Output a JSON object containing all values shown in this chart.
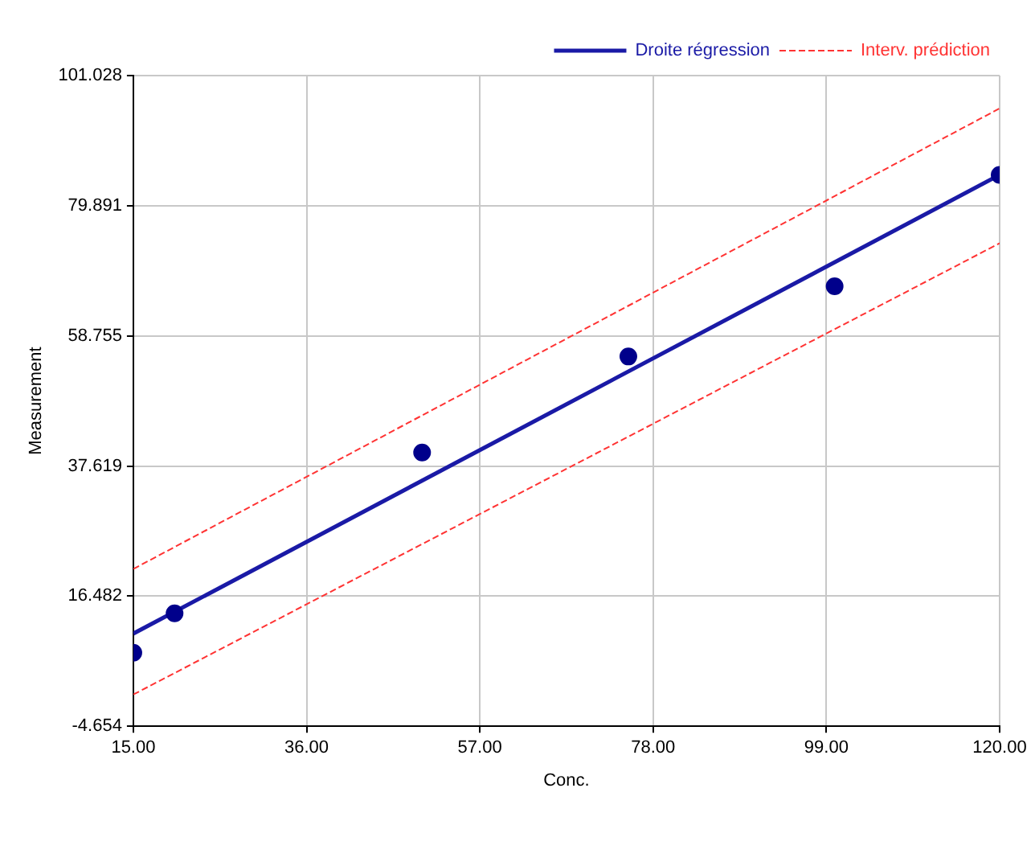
{
  "chart_data": {
    "type": "scatter",
    "xlabel": "Conc.",
    "ylabel": "Measurement",
    "xlim": [
      15,
      120
    ],
    "ylim": [
      -4.654,
      101.028
    ],
    "xticks": [
      {
        "value": 15,
        "label": "15.00"
      },
      {
        "value": 36,
        "label": "36.00"
      },
      {
        "value": 57,
        "label": "57.00"
      },
      {
        "value": 78,
        "label": "78.00"
      },
      {
        "value": 99,
        "label": "99.00"
      },
      {
        "value": 120,
        "label": "120.00"
      }
    ],
    "yticks": [
      -4.654,
      16.482,
      37.619,
      58.755,
      79.891,
      101.028
    ],
    "grid": true,
    "legend": "top right",
    "marker": "circle",
    "series": [
      {
        "type": "scatter",
        "color": "#00008b",
        "x": [
          15,
          20,
          50,
          75,
          100,
          120
        ],
        "values": [
          7.3,
          13.7,
          39.8,
          55.4,
          66.8,
          84.9
        ]
      },
      {
        "type": "line",
        "name": "Droite régression",
        "color": "#1a1aa6",
        "line_style": "solid",
        "marker": "none",
        "x": [
          15,
          120
        ],
        "values": [
          10.4,
          84.9
        ]
      },
      {
        "type": "line",
        "name": "Interv. prédiction",
        "color": "#ff3333",
        "line_style": "dashed",
        "marker": "none",
        "x": [
          15,
          120
        ],
        "values": [
          20.9,
          95.7
        ]
      },
      {
        "type": "line",
        "color": "#ff3333",
        "line_style": "dashed",
        "marker": "none",
        "x": [
          15,
          120
        ],
        "values": [
          0.5,
          73.8
        ]
      }
    ]
  }
}
